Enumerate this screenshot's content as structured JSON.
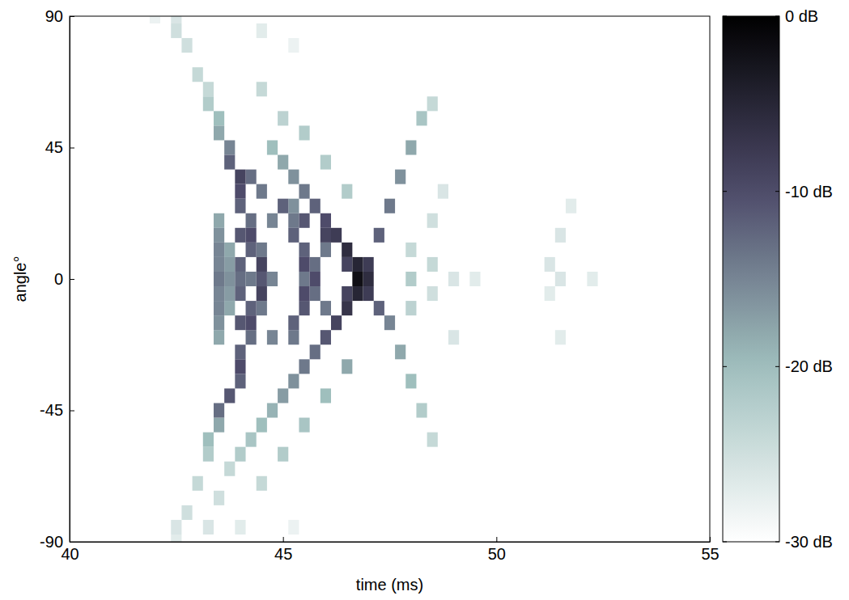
{
  "chart_data": {
    "type": "heatmap",
    "x_label": "time (ms)",
    "y_label": "angle°",
    "xlim": [
      40,
      55
    ],
    "xticks": [
      40,
      45,
      50,
      55
    ],
    "ylim": [
      -90,
      90
    ],
    "yticks": [
      -90,
      -45,
      0,
      45,
      90
    ],
    "colorbar": {
      "range": [
        -30,
        0
      ],
      "ticks": [
        {
          "value": 0,
          "label": "0 dB"
        },
        {
          "value": -10,
          "label": "-10 dB"
        },
        {
          "value": -20,
          "label": "-20 dB"
        },
        {
          "value": -30,
          "label": "-30 dB"
        }
      ]
    },
    "cells": [
      [
        43.5,
        -20,
        -18
      ],
      [
        43.5,
        -15,
        -16
      ],
      [
        43.5,
        -10,
        -15
      ],
      [
        43.5,
        -5,
        -15
      ],
      [
        43.5,
        0,
        -14
      ],
      [
        43.5,
        5,
        -15
      ],
      [
        43.5,
        10,
        -15
      ],
      [
        43.5,
        15,
        -16
      ],
      [
        43.5,
        20,
        -18
      ],
      [
        43.75,
        -10,
        -18
      ],
      [
        43.75,
        -5,
        -17
      ],
      [
        43.75,
        0,
        -16
      ],
      [
        43.75,
        5,
        -17
      ],
      [
        43.75,
        10,
        -18
      ],
      [
        44,
        35,
        -9
      ],
      [
        44,
        30,
        -10
      ],
      [
        44,
        25,
        -12
      ],
      [
        44,
        15,
        -11
      ],
      [
        44,
        5,
        -12
      ],
      [
        44,
        0,
        -13
      ],
      [
        44,
        -5,
        -12
      ],
      [
        44,
        -15,
        -11
      ],
      [
        44,
        -25,
        -12
      ],
      [
        44,
        -30,
        -10
      ],
      [
        44,
        -35,
        -12
      ],
      [
        43.75,
        40,
        -12
      ],
      [
        43.75,
        45,
        -15
      ],
      [
        43.5,
        50,
        -18
      ],
      [
        43.5,
        55,
        -20
      ],
      [
        43.25,
        60,
        -22
      ],
      [
        43.25,
        65,
        -24
      ],
      [
        43,
        70,
        -24
      ],
      [
        42.75,
        80,
        -25
      ],
      [
        42.5,
        85,
        -25
      ],
      [
        42.5,
        90,
        -26
      ],
      [
        43.75,
        -40,
        -11
      ],
      [
        43.5,
        -45,
        -13
      ],
      [
        43.5,
        -50,
        -18
      ],
      [
        43.25,
        -55,
        -20
      ],
      [
        43.25,
        -60,
        -22
      ],
      [
        43,
        -70,
        -24
      ],
      [
        42.75,
        -80,
        -25
      ],
      [
        42.5,
        -85,
        -26
      ],
      [
        44.25,
        20,
        -13
      ],
      [
        44.25,
        15,
        -10
      ],
      [
        44.25,
        10,
        -12
      ],
      [
        44.25,
        0,
        -14
      ],
      [
        44.25,
        -10,
        -12
      ],
      [
        44.25,
        -15,
        -10
      ],
      [
        44.25,
        -20,
        -13
      ],
      [
        44.5,
        10,
        -14
      ],
      [
        44.5,
        5,
        -9
      ],
      [
        44.5,
        0,
        -11
      ],
      [
        44.5,
        -5,
        -9
      ],
      [
        44.5,
        -10,
        -14
      ],
      [
        44.75,
        20,
        -15
      ],
      [
        44.75,
        0,
        -15
      ],
      [
        44.75,
        -20,
        -15
      ],
      [
        45.25,
        25,
        -16
      ],
      [
        45.25,
        20,
        -14
      ],
      [
        45.25,
        15,
        -12
      ],
      [
        45.25,
        -15,
        -12
      ],
      [
        45.25,
        -20,
        -14
      ],
      [
        45.5,
        10,
        -12
      ],
      [
        45.5,
        5,
        -10
      ],
      [
        45.5,
        0,
        -14
      ],
      [
        45.5,
        -5,
        -10
      ],
      [
        45.5,
        -10,
        -11
      ],
      [
        45.75,
        5,
        -13
      ],
      [
        45.75,
        0,
        -10
      ],
      [
        45.75,
        -5,
        -13
      ],
      [
        46,
        10,
        -14
      ],
      [
        46,
        -10,
        -14
      ],
      [
        46.75,
        5,
        -5
      ],
      [
        46.75,
        0,
        -2
      ],
      [
        46.75,
        -5,
        -5
      ],
      [
        46.5,
        10,
        -6
      ],
      [
        46.5,
        5,
        -9
      ],
      [
        46.5,
        -5,
        -9
      ],
      [
        46.5,
        -10,
        -7
      ],
      [
        46.25,
        15,
        -8
      ],
      [
        46.25,
        -15,
        -9
      ],
      [
        46,
        20,
        -10
      ],
      [
        46,
        -20,
        -11
      ],
      [
        45.75,
        25,
        -12
      ],
      [
        45.75,
        -25,
        -13
      ],
      [
        45.5,
        30,
        -14
      ],
      [
        45.5,
        -30,
        -14
      ],
      [
        45.25,
        35,
        -16
      ],
      [
        45.25,
        -35,
        -16
      ],
      [
        45,
        40,
        -18
      ],
      [
        45,
        -40,
        -17
      ],
      [
        44.75,
        45,
        -20
      ],
      [
        44.75,
        -45,
        -19
      ],
      [
        44.5,
        -50,
        -20
      ],
      [
        44.25,
        -55,
        -21
      ],
      [
        44,
        -60,
        -22
      ],
      [
        43.75,
        -65,
        -24
      ],
      [
        43.5,
        -75,
        -25
      ],
      [
        43.25,
        -85,
        -26
      ],
      [
        44.25,
        35,
        -13
      ],
      [
        44.5,
        30,
        -14
      ],
      [
        45,
        25,
        -12
      ],
      [
        45.5,
        20,
        -11
      ],
      [
        46,
        15,
        -9
      ],
      [
        47,
        0,
        -6
      ],
      [
        47,
        -5,
        -8
      ],
      [
        47.25,
        -10,
        -12
      ],
      [
        47.5,
        -15,
        -15
      ],
      [
        47.75,
        -25,
        -18
      ],
      [
        48,
        -35,
        -20
      ],
      [
        48.25,
        -45,
        -22
      ],
      [
        48.5,
        -55,
        -24
      ],
      [
        47,
        5,
        -8
      ],
      [
        47.25,
        15,
        -12
      ],
      [
        47.5,
        25,
        -14
      ],
      [
        47.75,
        35,
        -16
      ],
      [
        48,
        45,
        -18
      ],
      [
        48.25,
        55,
        -21
      ],
      [
        48.5,
        60,
        -24
      ],
      [
        44.5,
        65,
        -24
      ],
      [
        45,
        55,
        -23
      ],
      [
        45.5,
        50,
        -22
      ],
      [
        46,
        40,
        -22
      ],
      [
        46.5,
        30,
        -22
      ],
      [
        44.5,
        -70,
        -24
      ],
      [
        45,
        -60,
        -22
      ],
      [
        45.5,
        -50,
        -21
      ],
      [
        46,
        -40,
        -20
      ],
      [
        46.5,
        -30,
        -18
      ],
      [
        48,
        10,
        -24
      ],
      [
        48,
        0,
        -22
      ],
      [
        48,
        -10,
        -23
      ],
      [
        48.5,
        20,
        -25
      ],
      [
        48.5,
        5,
        -24
      ],
      [
        48.5,
        -5,
        -25
      ],
      [
        48.75,
        30,
        -26
      ],
      [
        49,
        0,
        -26
      ],
      [
        49,
        -20,
        -26
      ],
      [
        49.5,
        0,
        -27
      ],
      [
        51.25,
        5,
        -26
      ],
      [
        51.25,
        -5,
        -27
      ],
      [
        51.5,
        15,
        -26
      ],
      [
        51.5,
        0,
        -26
      ],
      [
        51.5,
        -20,
        -27
      ],
      [
        51.75,
        25,
        -27
      ],
      [
        52.25,
        0,
        -27
      ],
      [
        42,
        90,
        -28
      ],
      [
        44.5,
        85,
        -27
      ],
      [
        45.25,
        80,
        -28
      ],
      [
        42.5,
        -90,
        -27
      ],
      [
        44,
        -85,
        -27
      ],
      [
        45.25,
        -85,
        -28
      ]
    ]
  }
}
